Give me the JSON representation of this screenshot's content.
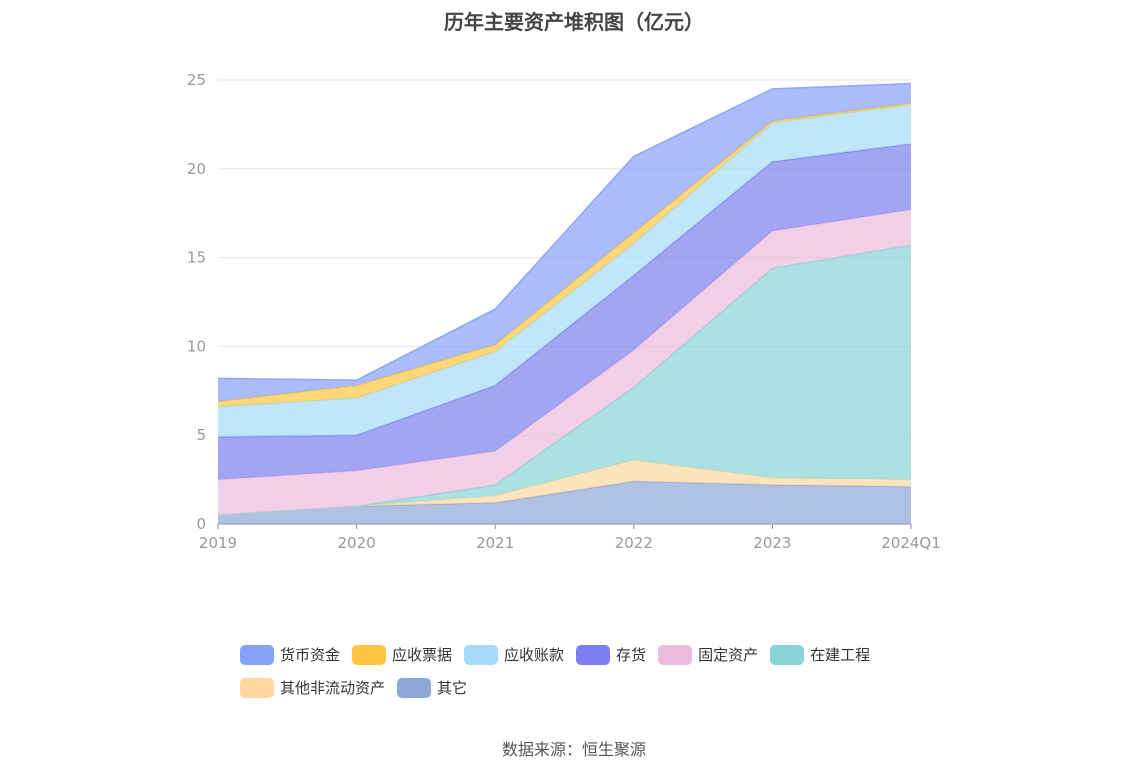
{
  "chart_data": {
    "type": "area",
    "title": "历年主要资产堆积图（亿元）",
    "categories": [
      "2019",
      "2020",
      "2021",
      "2022",
      "2023",
      "2024Q1"
    ],
    "ylim": [
      0,
      25
    ],
    "yticks": [
      "0",
      "5",
      "10",
      "15",
      "20",
      "25"
    ],
    "stacked": true,
    "grid": true,
    "legend_position": "bottom",
    "series": [
      {
        "name": "其它",
        "color": "#8fa8d8",
        "values": [
          0.5,
          1.0,
          1.2,
          2.4,
          2.2,
          2.1
        ]
      },
      {
        "name": "其他非流动资产",
        "color": "#fdd9a0",
        "values": [
          0.0,
          0.0,
          0.4,
          1.2,
          0.4,
          0.4
        ]
      },
      {
        "name": "在建工程",
        "color": "#88d4d6",
        "values": [
          0.0,
          0.0,
          0.6,
          4.1,
          11.8,
          13.2
        ]
      },
      {
        "name": "固定资产",
        "color": "#ebbcdd",
        "values": [
          2.0,
          2.0,
          1.9,
          2.1,
          2.1,
          2.0
        ]
      },
      {
        "name": "存货",
        "color": "#7b7ff0",
        "values": [
          2.4,
          2.0,
          3.7,
          4.2,
          3.9,
          3.7
        ]
      },
      {
        "name": "应收账款",
        "color": "#a6dcf7",
        "values": [
          1.7,
          2.1,
          1.9,
          1.8,
          2.2,
          2.2
        ]
      },
      {
        "name": "应收票据",
        "color": "#fec63e",
        "values": [
          0.3,
          0.7,
          0.4,
          0.6,
          0.1,
          0.1
        ]
      },
      {
        "name": "货币资金",
        "color": "#86a1f8",
        "values": [
          1.3,
          0.3,
          2.0,
          4.3,
          1.8,
          1.1
        ]
      }
    ]
  },
  "legend_order": [
    "货币资金",
    "应收票据",
    "应收账款",
    "存货",
    "固定资产",
    "在建工程",
    "其他非流动资产",
    "其它"
  ],
  "source": "数据来源：恒生聚源"
}
